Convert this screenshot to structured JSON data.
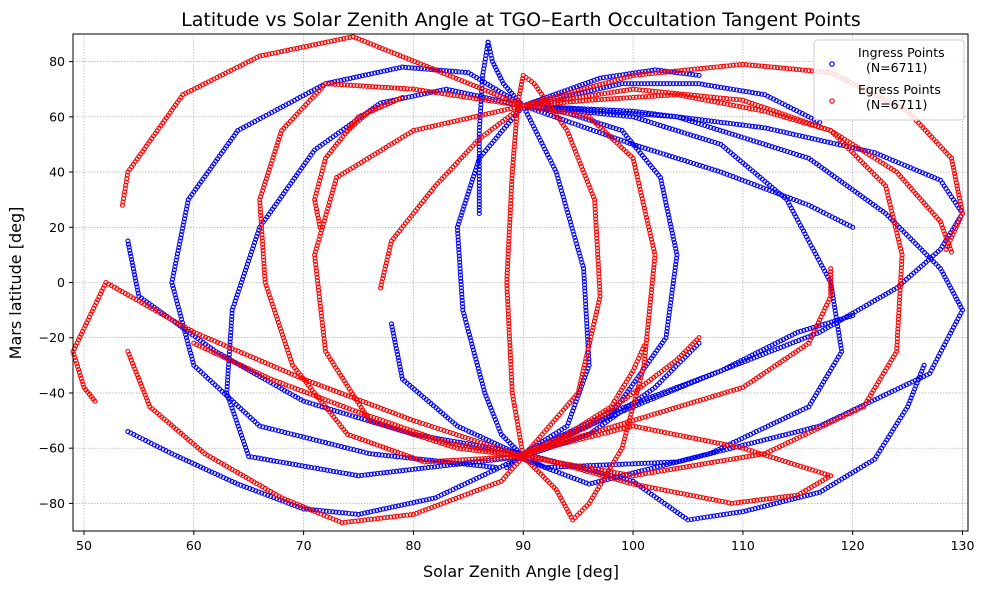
{
  "chart_data": {
    "type": "scatter",
    "title": "Latitude vs Solar Zenith Angle at TGO–Earth Occultation Tangent Points",
    "xlabel": "Solar Zenith Angle [deg]",
    "ylabel": "Mars latitude [deg]",
    "xlim": [
      49,
      130.5
    ],
    "ylim": [
      -90,
      90
    ],
    "xticks": [
      50,
      60,
      70,
      80,
      90,
      100,
      110,
      120,
      130
    ],
    "yticks": [
      -80,
      -60,
      -40,
      -20,
      0,
      20,
      40,
      60,
      80
    ],
    "grid": true,
    "legend_position": "top-right",
    "marker": "hollow-circle",
    "series": [
      {
        "name": "Ingress Points\n  (N=6711)",
        "color": "#0000ff",
        "tracks": [
          [
            [
              87.5,
              -67
            ],
            [
              76,
              -62
            ],
            [
              66,
              -52
            ],
            [
              60,
              -30
            ],
            [
              58,
              0
            ],
            [
              59.5,
              30
            ],
            [
              64,
              55
            ],
            [
              72,
              72
            ],
            [
              79,
              78
            ],
            [
              85,
              76
            ],
            [
              90,
              64
            ],
            [
              93,
              40
            ],
            [
              95.5,
              5
            ],
            [
              96,
              -30
            ],
            [
              94,
              -52
            ],
            [
              90,
              -62
            ],
            [
              88.5,
              -67
            ]
          ],
          [
            [
              90,
              -63
            ],
            [
              98,
              -48
            ],
            [
              103,
              -20
            ],
            [
              104,
              10
            ],
            [
              102.5,
              38
            ],
            [
              99,
              55
            ],
            [
              93.5,
              62
            ],
            [
              90,
              64
            ],
            [
              86,
              45
            ],
            [
              84,
              20
            ],
            [
              84.5,
              -10
            ],
            [
              86.5,
              -40
            ],
            [
              88,
              -55
            ],
            [
              90,
              -63
            ]
          ],
          [
            [
              90,
              -63
            ],
            [
              75,
              -70
            ],
            [
              65,
              -63
            ],
            [
              63,
              -40
            ],
            [
              63.5,
              -10
            ],
            [
              66,
              20
            ],
            [
              71,
              48
            ],
            [
              77,
              65
            ],
            [
              83,
              70
            ],
            [
              90,
              64
            ],
            [
              104,
              60
            ],
            [
              116,
              45
            ],
            [
              123,
              25
            ],
            [
              128,
              5
            ],
            [
              130,
              -10
            ],
            [
              127,
              -33
            ],
            [
              117,
              -52
            ],
            [
              104,
              -65
            ],
            [
              92,
              -67
            ],
            [
              90,
              -63
            ]
          ],
          [
            [
              90,
              64
            ],
            [
              100,
              60
            ],
            [
              108,
              50
            ],
            [
              114,
              30
            ],
            [
              118,
              0
            ],
            [
              119,
              -25
            ],
            [
              116,
              -45
            ],
            [
              107,
              -62
            ],
            [
              96,
              -73
            ],
            [
              90,
              -64
            ]
          ],
          [
            [
              86.8,
              87
            ],
            [
              87.2,
              80
            ],
            [
              88.2,
              72
            ],
            [
              89.5,
              66
            ],
            [
              90,
              64
            ]
          ],
          [
            [
              86.8,
              87
            ],
            [
              86.3,
              75
            ],
            [
              86,
              55
            ],
            [
              86,
              35
            ],
            [
              86,
              25
            ]
          ],
          [
            [
              90,
              64
            ],
            [
              100,
              62
            ],
            [
              112,
              56
            ],
            [
              122,
              47
            ],
            [
              128,
              37
            ],
            [
              130,
              25
            ],
            [
              128,
              12
            ],
            [
              124,
              -2
            ],
            [
              117,
              -18
            ],
            [
              108,
              -32
            ],
            [
              98,
              -47
            ],
            [
              90,
              -62
            ]
          ],
          [
            [
              90,
              -62
            ],
            [
              100,
              -72
            ],
            [
              105,
              -86
            ],
            [
              110,
              -83
            ],
            [
              117,
              -76
            ],
            [
              122,
              -64
            ],
            [
              125,
              -45
            ],
            [
              126.5,
              -30
            ]
          ],
          [
            [
              90,
              -63
            ],
            [
              82,
              -78
            ],
            [
              75,
              -84
            ],
            [
              70,
              -82
            ],
            [
              64,
              -73
            ],
            [
              58,
              -62
            ],
            [
              54,
              -54
            ]
          ],
          [
            [
              90,
              -62
            ],
            [
              80,
              -55
            ],
            [
              70,
              -43
            ],
            [
              62,
              -25
            ],
            [
              55,
              -5
            ],
            [
              54,
              15
            ]
          ],
          [
            [
              90,
              -63
            ],
            [
              84,
              -52
            ],
            [
              79,
              -35
            ],
            [
              78,
              -15
            ]
          ],
          [
            [
              90,
              64
            ],
            [
              97,
              74
            ],
            [
              102,
              77
            ],
            [
              106,
              75
            ]
          ],
          [
            [
              90,
              64
            ],
            [
              99,
              72
            ],
            [
              106,
              72
            ],
            [
              112,
              68
            ],
            [
              117,
              58
            ]
          ],
          [
            [
              90,
              -62
            ],
            [
              100,
              -45
            ],
            [
              108,
              -32
            ],
            [
              115,
              -18
            ],
            [
              120,
              -12
            ]
          ],
          [
            [
              90,
              64
            ],
            [
              100,
              50
            ],
            [
              108,
              40
            ],
            [
              116,
              28
            ],
            [
              120,
              20
            ]
          ],
          [
            [
              90,
              -63
            ],
            [
              96,
              -55
            ],
            [
              102,
              -38
            ],
            [
              106,
              -22
            ]
          ]
        ]
      },
      {
        "name": "Egress Points\n  (N=6711)",
        "color": "#ff0000",
        "tracks": [
          [
            [
              54,
              -25
            ],
            [
              56,
              -45
            ],
            [
              61,
              -62
            ],
            [
              68,
              -78
            ],
            [
              73.5,
              -87
            ],
            [
              80,
              -84
            ],
            [
              88,
              -72
            ],
            [
              90,
              -63
            ],
            [
              95,
              -40
            ],
            [
              97,
              -5
            ],
            [
              96.5,
              30
            ],
            [
              94,
              55
            ],
            [
              91,
              72
            ],
            [
              90,
              75
            ],
            [
              89.5,
              65
            ],
            [
              89,
              40
            ],
            [
              88.5,
              0
            ],
            [
              89,
              -40
            ],
            [
              90,
              -63
            ]
          ],
          [
            [
              90,
              -63
            ],
            [
              93,
              -75
            ],
            [
              94.5,
              -86
            ],
            [
              96,
              -80
            ],
            [
              99,
              -60
            ],
            [
              101,
              -30
            ],
            [
              102,
              10
            ],
            [
              100,
              45
            ],
            [
              96,
              60
            ],
            [
              90,
              64
            ],
            [
              80,
              70
            ],
            [
              72,
              72
            ],
            [
              68,
              55
            ],
            [
              66,
              30
            ],
            [
              66.5,
              0
            ],
            [
              69,
              -30
            ],
            [
              74,
              -55
            ],
            [
              81,
              -65
            ],
            [
              90,
              -63
            ]
          ],
          [
            [
              90,
              64
            ],
            [
              100,
              70
            ],
            [
              110,
              66
            ],
            [
              118,
              55
            ],
            [
              123,
              35
            ],
            [
              124.5,
              10
            ],
            [
              124,
              -25
            ],
            [
              121,
              -45
            ],
            [
              112,
              -62
            ],
            [
              100,
              -70
            ],
            [
              90,
              -63
            ]
          ],
          [
            [
              90,
              64
            ],
            [
              80,
              55
            ],
            [
              73,
              38
            ],
            [
              71,
              10
            ],
            [
              72,
              -25
            ],
            [
              76,
              -50
            ],
            [
              84,
              -60
            ],
            [
              90,
              -63
            ]
          ],
          [
            [
              90,
              -62
            ],
            [
              100,
              -73
            ],
            [
              109,
              -80
            ],
            [
              115,
              -77
            ],
            [
              118,
              -70
            ],
            [
              110,
              -60
            ],
            [
              100,
              -52
            ],
            [
              90,
              -62
            ]
          ],
          [
            [
              90,
              64
            ],
            [
              82,
              77
            ],
            [
              74.5,
              89
            ],
            [
              66,
              82
            ],
            [
              59,
              68
            ],
            [
              54,
              40
            ],
            [
              53.5,
              28
            ]
          ],
          [
            [
              90,
              64
            ],
            [
              100,
              75
            ],
            [
              110,
              79
            ],
            [
              118,
              76
            ],
            [
              125,
              62
            ],
            [
              129,
              45
            ],
            [
              130,
              25
            ],
            [
              128.5,
              12
            ]
          ],
          [
            [
              90,
              -63
            ],
            [
              80,
              -50
            ],
            [
              70,
              -35
            ],
            [
              60,
              -18
            ],
            [
              52,
              0
            ],
            [
              49,
              -25
            ],
            [
              50,
              -38
            ],
            [
              51,
              -43
            ]
          ],
          [
            [
              90,
              64
            ],
            [
              96,
              66
            ],
            [
              104,
              68
            ],
            [
              112,
              62
            ],
            [
              118,
              55
            ],
            [
              124,
              40
            ],
            [
              128,
              22
            ],
            [
              129,
              11
            ]
          ],
          [
            [
              90,
              -62
            ],
            [
              94,
              -55
            ],
            [
              98,
              -45
            ],
            [
              100,
              -32
            ],
            [
              101,
              -23
            ]
          ],
          [
            [
              90,
              64
            ],
            [
              86,
              52
            ],
            [
              82,
              35
            ],
            [
              78,
              15
            ],
            [
              77,
              -2
            ]
          ],
          [
            [
              90,
              -63
            ],
            [
              96,
              -52
            ],
            [
              100,
              -40
            ],
            [
              104,
              -28
            ],
            [
              106,
              -20
            ]
          ],
          [
            [
              79,
              67
            ],
            [
              75,
              60
            ],
            [
              72,
              45
            ],
            [
              71,
              30
            ],
            [
              71.5,
              20
            ]
          ],
          [
            [
              90,
              -63
            ],
            [
              83,
              -58
            ],
            [
              75,
              -47
            ],
            [
              67,
              -35
            ],
            [
              60,
              -22
            ]
          ],
          [
            [
              90,
              -62
            ],
            [
              110,
              -38
            ],
            [
              116,
              -22
            ],
            [
              118,
              -5
            ],
            [
              118,
              5
            ]
          ],
          [
            [
              79,
              67
            ],
            [
              76,
              62
            ],
            [
              74,
              55
            ]
          ]
        ]
      }
    ]
  }
}
